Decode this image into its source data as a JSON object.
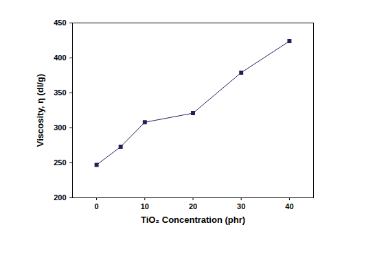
{
  "chart_data": {
    "type": "line",
    "x_label": "TiO₂ Concentration (phr)",
    "y_label": "Viscosity, η (dl/g)",
    "x": [
      0,
      5,
      10,
      20,
      30,
      40
    ],
    "values": [
      247,
      273,
      308,
      321,
      379,
      424
    ],
    "color": "#1f1f5a",
    "marker": "square",
    "xlim": [
      -5,
      45
    ],
    "xticks": [
      0,
      10,
      20,
      30,
      40
    ],
    "ylim": [
      200,
      450
    ],
    "yticks": [
      200,
      250,
      300,
      350,
      400,
      450
    ],
    "grid": false
  }
}
